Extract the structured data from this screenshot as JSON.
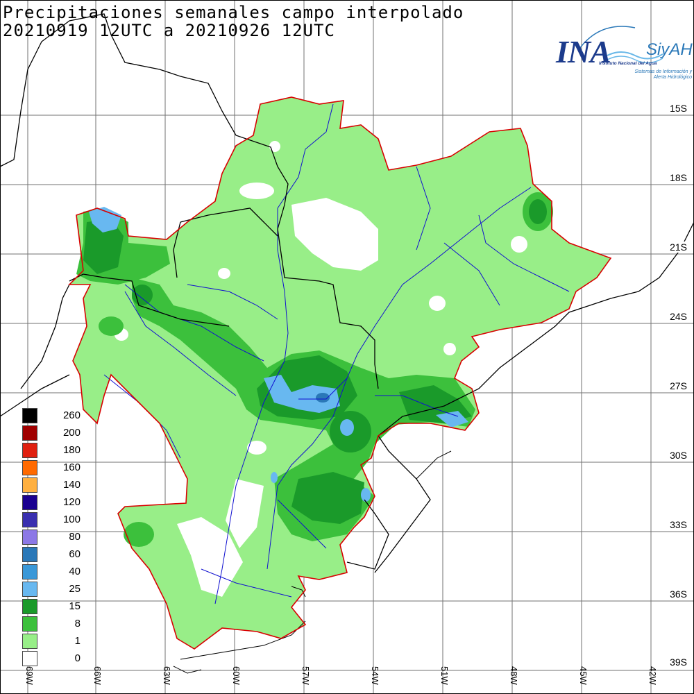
{
  "title": {
    "line1": "Precipitaciones semanales campo interpolado",
    "line2": "20210919 12UTC a 20210926 12UTC"
  },
  "logo": {
    "mark": "INA",
    "product": "SiyAH",
    "institution": "Instituto Nacional del Agua",
    "system": "Sistemas de Información y Alerta Hidrológico"
  },
  "lat_labels": [
    "15S",
    "18S",
    "21S",
    "24S",
    "27S",
    "30S",
    "33S",
    "36S",
    "39S"
  ],
  "lon_labels": [
    "69W",
    "66W",
    "63W",
    "60W",
    "57W",
    "54W",
    "51W",
    "48W",
    "45W",
    "42W"
  ],
  "legend": [
    {
      "label": "260",
      "color": "#000000"
    },
    {
      "label": "200",
      "color": "#a00000"
    },
    {
      "label": "180",
      "color": "#e02010"
    },
    {
      "label": "160",
      "color": "#ff6a00"
    },
    {
      "label": "140",
      "color": "#ffb040"
    },
    {
      "label": "120",
      "color": "#1a0090"
    },
    {
      "label": "100",
      "color": "#3a30b0"
    },
    {
      "label": "80",
      "color": "#8c78e6"
    },
    {
      "label": "60",
      "color": "#2a78b8"
    },
    {
      "label": "40",
      "color": "#3a98d8"
    },
    {
      "label": "25",
      "color": "#68b8f0"
    },
    {
      "label": "15",
      "color": "#1a9a2a"
    },
    {
      "label": "8",
      "color": "#3cc03c"
    },
    {
      "label": "1",
      "color": "#98ee88"
    },
    {
      "label": "0",
      "color": "#ffffff"
    }
  ],
  "colors": {
    "basin_outline": "#d80000",
    "rivers": "#1010d0",
    "borders": "#000000",
    "grid": "#000000"
  }
}
